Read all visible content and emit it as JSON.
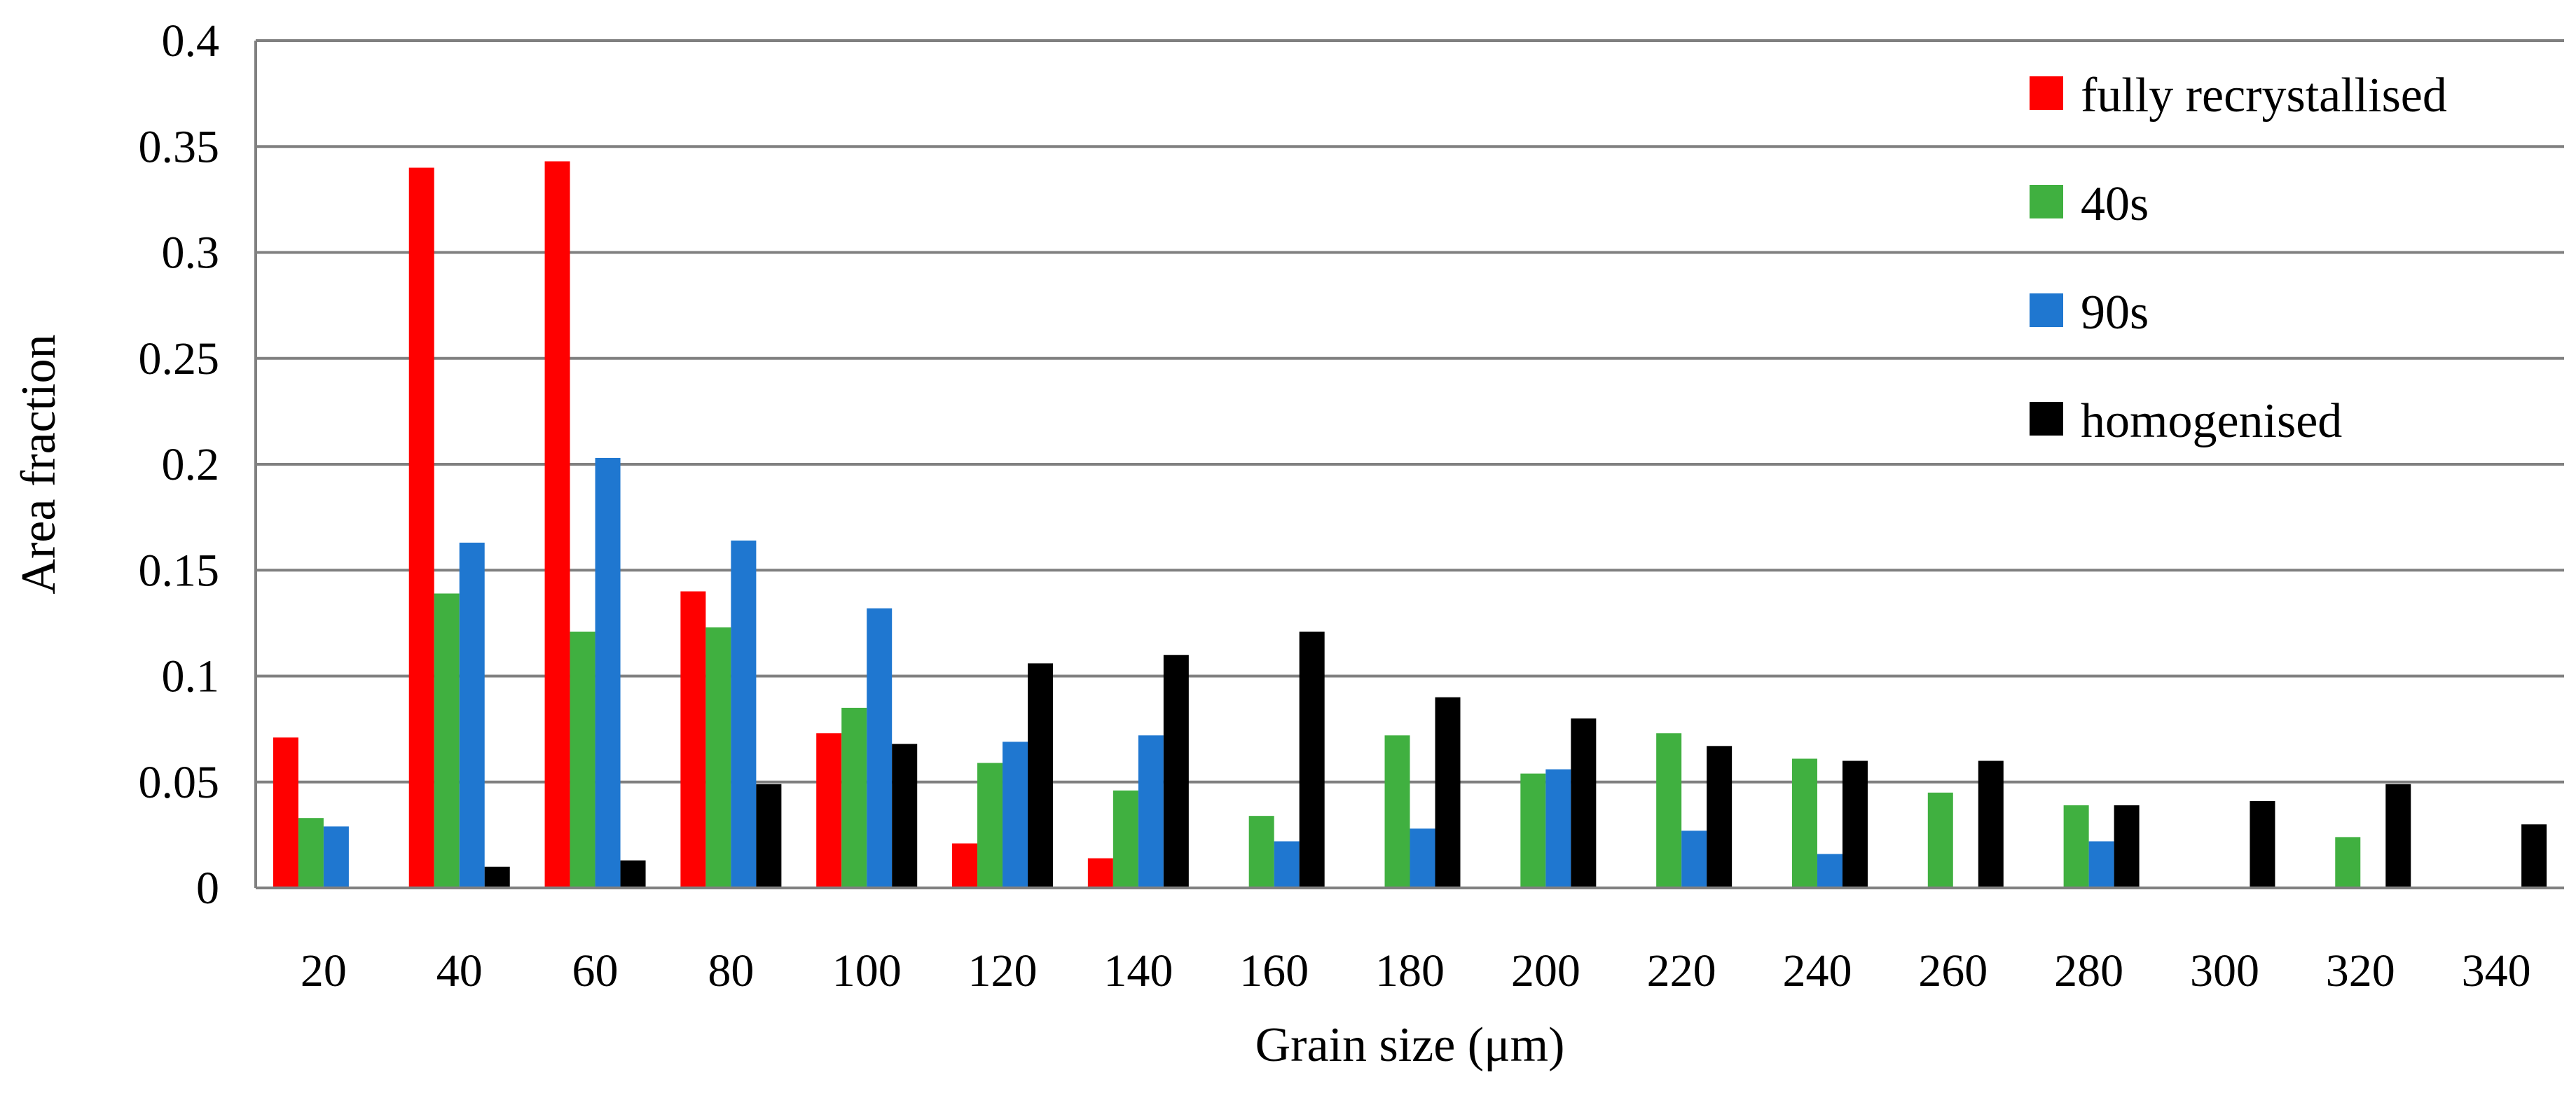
{
  "chart_data": {
    "type": "bar",
    "title": "",
    "xlabel": "Grain size (μm)",
    "ylabel": "Area fraction",
    "ylim": [
      0,
      0.4
    ],
    "yticks": [
      0,
      0.05,
      0.1,
      0.15,
      0.2,
      0.25,
      0.3,
      0.35,
      0.4
    ],
    "ytick_labels": [
      "0",
      "0.05",
      "0.1",
      "0.15",
      "0.2",
      "0.25",
      "0.3",
      "0.35",
      "0.4"
    ],
    "grid": true,
    "legend_position": "top-right",
    "categories": [
      "20",
      "40",
      "60",
      "80",
      "100",
      "120",
      "140",
      "160",
      "180",
      "200",
      "220",
      "240",
      "260",
      "280",
      "300",
      "320",
      "340"
    ],
    "series": [
      {
        "name": "fully recrystallised",
        "color": "#ff0000",
        "values": [
          0.071,
          0.34,
          0.343,
          0.14,
          0.073,
          0.021,
          0.014,
          0,
          0,
          0,
          0,
          0,
          0,
          0,
          0,
          0,
          0
        ]
      },
      {
        "name": "40s",
        "color": "#40b040",
        "values": [
          0.033,
          0.139,
          0.121,
          0.123,
          0.085,
          0.059,
          0.046,
          0.034,
          0.072,
          0.054,
          0.073,
          0.061,
          0.045,
          0.039,
          0,
          0.024,
          0
        ]
      },
      {
        "name": "90s",
        "color": "#1f77d0",
        "values": [
          0.029,
          0.163,
          0.203,
          0.164,
          0.132,
          0.069,
          0.072,
          0.022,
          0.028,
          0.056,
          0.027,
          0.016,
          0,
          0.022,
          0,
          0,
          0
        ]
      },
      {
        "name": "homogenised",
        "color": "#000000",
        "values": [
          0,
          0.01,
          0.013,
          0.049,
          0.068,
          0.106,
          0.11,
          0.121,
          0.09,
          0.08,
          0.067,
          0.06,
          0.06,
          0.039,
          0.041,
          0.049,
          0.03
        ]
      }
    ]
  }
}
